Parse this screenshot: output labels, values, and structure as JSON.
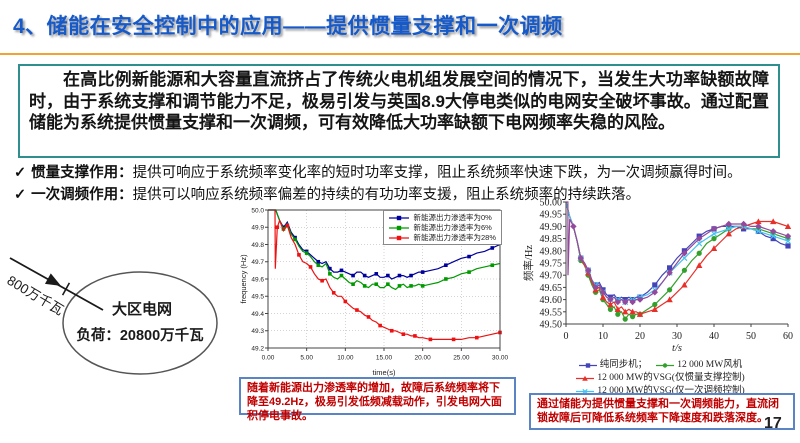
{
  "page": {
    "title": "4、储能在安全控制中的应用——提供惯量支撑和一次调频",
    "page_number": "17"
  },
  "summary_box": {
    "text": "在高比例新能源和大容量直流挤占了传统火电机组发展空间的情况下，当发生大功率缺额故障时，由于系统支撑和调节能力不足，极易引发与英国8.9大停电类似的电网安全破坏事故。通过配置储能为系统提供惯量支撑和一次调频，可有效降低大功率缺额下电网频率失稳的风险。"
  },
  "bullets": [
    {
      "check": "✓",
      "label": "惯量支撑作用：",
      "text": "提供可响应于系统频率变化率的短时功率支撑，阻止系统频率快速下跌，为一次调频赢得时间。"
    },
    {
      "check": "✓",
      "label": "一次调频作用：",
      "text": "提供可以响应系统频率偏差的持续的有功功率支援，阻止系统频率的持续跌落。"
    }
  ],
  "diagram": {
    "arrow_label": "800万千瓦",
    "ellipse_line1": "大区电网",
    "ellipse_line2": "负荷：20800万千瓦"
  },
  "callouts": {
    "middle": "随着新能源出力渗透率的增加，故障后系统频率将下降至49.2Hz，极易引发低频减载动作，引发电网大面积停电事故。",
    "right": "通过储能为提供惯量支撑和一次调频能力，直流闭锁故障后可降低系统频率下降速度和跌落深度。"
  },
  "chart_data": [
    {
      "type": "line",
      "title": "",
      "xlabel": "time(s)",
      "ylabel": "frequency (Hz)",
      "xlim": [
        0,
        30
      ],
      "ylim": [
        49.2,
        50.0
      ],
      "grid": true,
      "legend_position": "top-right-inside",
      "xticks": [
        0,
        5,
        10,
        15,
        20,
        25,
        30
      ],
      "xtick_labels": [
        "0.00",
        "5.00",
        "10.00",
        "15.00",
        "20.00",
        "25.00",
        "30.00"
      ],
      "yticks": [
        49.2,
        49.3,
        49.4,
        49.5,
        49.6,
        49.7,
        49.8,
        49.9,
        50.0
      ],
      "ytick_labels": [
        "49.2",
        "49.3",
        "49.4",
        "49.5",
        "49.6",
        "49.7",
        "49.8",
        "49.9",
        "50.0"
      ],
      "x": [
        0,
        1,
        1.5,
        2,
        2.5,
        3,
        3.5,
        4,
        4.5,
        5,
        5.5,
        6,
        6.5,
        7,
        7.5,
        8,
        8.5,
        9,
        9.5,
        10,
        10.5,
        11,
        11.5,
        12,
        12.5,
        13,
        13.5,
        14,
        14.5,
        15,
        15.5,
        16,
        16.5,
        17,
        17.5,
        18,
        18.5,
        19,
        19.5,
        20,
        21,
        22,
        23,
        24,
        25,
        26,
        27,
        28,
        29,
        30
      ],
      "series": [
        {
          "name": "新能源出力渗透率为0%",
          "color": "#00009c",
          "marker": "square",
          "values": [
            50.0,
            50.0,
            49.94,
            49.9,
            49.93,
            49.87,
            49.84,
            49.8,
            49.77,
            49.76,
            49.74,
            49.72,
            49.7,
            49.69,
            49.7,
            49.66,
            49.64,
            49.64,
            49.65,
            49.64,
            49.63,
            49.62,
            49.64,
            49.64,
            49.62,
            49.61,
            49.62,
            49.63,
            49.61,
            49.61,
            49.62,
            49.6,
            49.61,
            49.62,
            49.62,
            49.61,
            49.62,
            49.63,
            49.64,
            49.64,
            49.65,
            49.66,
            49.68,
            49.7,
            49.72,
            49.73,
            49.75,
            49.76,
            49.78,
            49.8
          ]
        },
        {
          "name": "新能源出力渗透率为6%",
          "color": "#009900",
          "marker": "square",
          "values": [
            50.0,
            50.0,
            49.94,
            49.89,
            49.92,
            49.86,
            49.83,
            49.79,
            49.76,
            49.75,
            49.73,
            49.7,
            49.68,
            49.67,
            49.69,
            49.63,
            49.61,
            49.6,
            49.62,
            49.6,
            49.58,
            49.57,
            49.59,
            49.58,
            49.56,
            49.55,
            49.57,
            49.57,
            49.55,
            49.55,
            49.57,
            49.55,
            49.54,
            49.56,
            49.57,
            49.55,
            49.56,
            49.56,
            49.57,
            49.56,
            49.57,
            49.58,
            49.6,
            49.61,
            49.63,
            49.64,
            49.66,
            49.67,
            49.68,
            49.69
          ]
        },
        {
          "name": "新能源出力渗透率为28%",
          "color": "#ee1111",
          "marker": "square",
          "x": [
            0,
            0.9,
            0.95,
            1.2,
            1.5,
            2,
            2.5,
            3,
            3.5,
            4,
            4.5,
            5,
            5.5,
            6,
            6.5,
            7,
            7.5,
            8,
            8.5,
            9,
            9.5,
            10,
            10.5,
            11,
            11.5,
            12,
            12.5,
            13,
            13.5,
            14,
            14.5,
            15,
            15.5,
            16,
            16.5,
            17,
            17.5,
            18,
            18.5,
            19,
            19.5,
            20,
            21,
            22,
            23,
            24,
            25,
            26,
            27,
            28,
            29,
            30
          ],
          "values": [
            50.0,
            50.0,
            49.66,
            49.9,
            49.94,
            49.88,
            49.91,
            49.84,
            49.8,
            49.74,
            49.7,
            49.69,
            49.67,
            49.63,
            49.6,
            49.59,
            49.6,
            49.55,
            49.52,
            49.5,
            49.5,
            49.47,
            49.45,
            49.43,
            49.42,
            49.41,
            49.39,
            49.38,
            49.36,
            49.35,
            49.33,
            49.32,
            49.31,
            49.3,
            49.3,
            49.29,
            49.28,
            49.28,
            49.27,
            49.27,
            49.26,
            49.26,
            49.25,
            49.25,
            49.25,
            49.25,
            49.25,
            49.26,
            49.26,
            49.27,
            49.28,
            49.29
          ]
        }
      ]
    },
    {
      "type": "line",
      "title": "",
      "xlabel": "t/s",
      "xlabel_italic": true,
      "ylabel": "频率/Hz",
      "xlim": [
        0,
        60
      ],
      "ylim": [
        49.5,
        50.0
      ],
      "grid": false,
      "legend_position": "below",
      "legend_rows": [
        [
          0,
          1
        ],
        [
          2
        ],
        [
          3
        ],
        [
          4
        ]
      ],
      "xticks": [
        0,
        10,
        20,
        30,
        40,
        50,
        60
      ],
      "xtick_labels": [
        "0",
        "10",
        "20",
        "30",
        "40",
        "50",
        "60"
      ],
      "yticks": [
        49.5,
        49.55,
        49.6,
        49.65,
        49.7,
        49.75,
        49.8,
        49.85,
        49.9,
        49.95,
        50.0
      ],
      "ytick_labels": [
        "49.50",
        "49.55",
        "49.60",
        "49.65",
        "49.70",
        "49.75",
        "49.80",
        "49.85",
        "49.90",
        "49.95",
        "50.00"
      ],
      "x": [
        0,
        1,
        2,
        3,
        4,
        5,
        6,
        7,
        8,
        9,
        10,
        11,
        12,
        13,
        14,
        15,
        16,
        17,
        18,
        19,
        20,
        22,
        24,
        26,
        28,
        30,
        32,
        34,
        36,
        38,
        40,
        42,
        44,
        46,
        48,
        50,
        52,
        54,
        56,
        58,
        60
      ],
      "series": [
        {
          "name": "纯同步机；",
          "color": "#4444b8",
          "marker": "square",
          "values": [
            50.0,
            49.94,
            49.9,
            49.84,
            49.77,
            49.75,
            49.72,
            49.68,
            49.66,
            49.67,
            49.64,
            49.62,
            49.61,
            49.62,
            49.6,
            49.61,
            49.6,
            49.61,
            49.6,
            49.61,
            49.61,
            49.63,
            49.66,
            49.7,
            49.73,
            49.77,
            49.8,
            49.83,
            49.86,
            49.88,
            49.89,
            49.9,
            49.9,
            49.9,
            49.89,
            49.89,
            49.88,
            49.86,
            49.85,
            49.83,
            49.82
          ]
        },
        {
          "name": "12 000 MW风机",
          "color": "#33a02c",
          "marker": "circle",
          "values": [
            50.0,
            49.94,
            49.9,
            49.84,
            49.76,
            49.74,
            49.7,
            49.66,
            49.63,
            49.64,
            49.6,
            49.58,
            49.56,
            49.57,
            49.54,
            49.55,
            49.52,
            49.54,
            49.53,
            49.54,
            49.54,
            49.56,
            49.58,
            49.61,
            49.64,
            49.68,
            49.72,
            49.76,
            49.79,
            49.83,
            49.85,
            49.87,
            49.89,
            49.9,
            49.9,
            49.89,
            49.89,
            49.88,
            49.87,
            49.86,
            49.85
          ]
        },
        {
          "name": "12 000 MW的VSG(仅惯量支撑控制)",
          "color": "#e8302a",
          "marker": "triangle",
          "values": [
            50.0,
            49.94,
            49.9,
            49.84,
            49.77,
            49.74,
            49.71,
            49.67,
            49.64,
            49.65,
            49.61,
            49.59,
            49.58,
            49.59,
            49.56,
            49.57,
            49.55,
            49.56,
            49.55,
            49.55,
            49.54,
            49.55,
            49.56,
            49.58,
            49.6,
            49.63,
            49.66,
            49.7,
            49.74,
            49.78,
            49.81,
            49.84,
            49.87,
            49.89,
            49.9,
            49.91,
            49.92,
            49.92,
            49.92,
            49.91,
            49.9
          ]
        },
        {
          "name": "12 000 MW的VSG(仅一次调频控制)",
          "color": "#45c3f0",
          "marker": "x",
          "values": [
            50.0,
            49.94,
            49.9,
            49.84,
            49.77,
            49.75,
            49.72,
            49.68,
            49.66,
            49.66,
            49.63,
            49.61,
            49.6,
            49.61,
            49.6,
            49.6,
            49.59,
            49.6,
            49.6,
            49.6,
            49.61,
            49.62,
            49.64,
            49.67,
            49.71,
            49.74,
            49.77,
            49.8,
            49.83,
            49.85,
            49.87,
            49.88,
            49.89,
            49.9,
            49.9,
            49.89,
            49.88,
            49.87,
            49.86,
            49.85,
            49.84
          ]
        },
        {
          "name": "12 000 MW的VSG(惯量支撑控制+一次调频控制)",
          "color": "#93499c",
          "marker": "diamond",
          "x": [
            0,
            0.5,
            0.55,
            1,
            2,
            3,
            4,
            5,
            6,
            7,
            8,
            9,
            10,
            11,
            12,
            13,
            14,
            15,
            16,
            17,
            18,
            19,
            20,
            22,
            24,
            26,
            28,
            30,
            32,
            34,
            36,
            38,
            40,
            42,
            44,
            46,
            48,
            50,
            52,
            54,
            56,
            58,
            60
          ],
          "values": [
            50.0,
            50.0,
            49.7,
            49.93,
            49.9,
            49.84,
            49.77,
            49.75,
            49.72,
            49.68,
            49.65,
            49.66,
            49.63,
            49.61,
            49.6,
            49.61,
            49.59,
            49.6,
            49.59,
            49.6,
            49.59,
            49.6,
            49.6,
            49.61,
            49.63,
            49.67,
            49.71,
            49.75,
            49.79,
            49.82,
            49.85,
            49.87,
            49.89,
            49.9,
            49.91,
            49.91,
            49.91,
            49.9,
            49.9,
            49.89,
            49.88,
            49.87,
            49.86
          ]
        }
      ]
    }
  ]
}
